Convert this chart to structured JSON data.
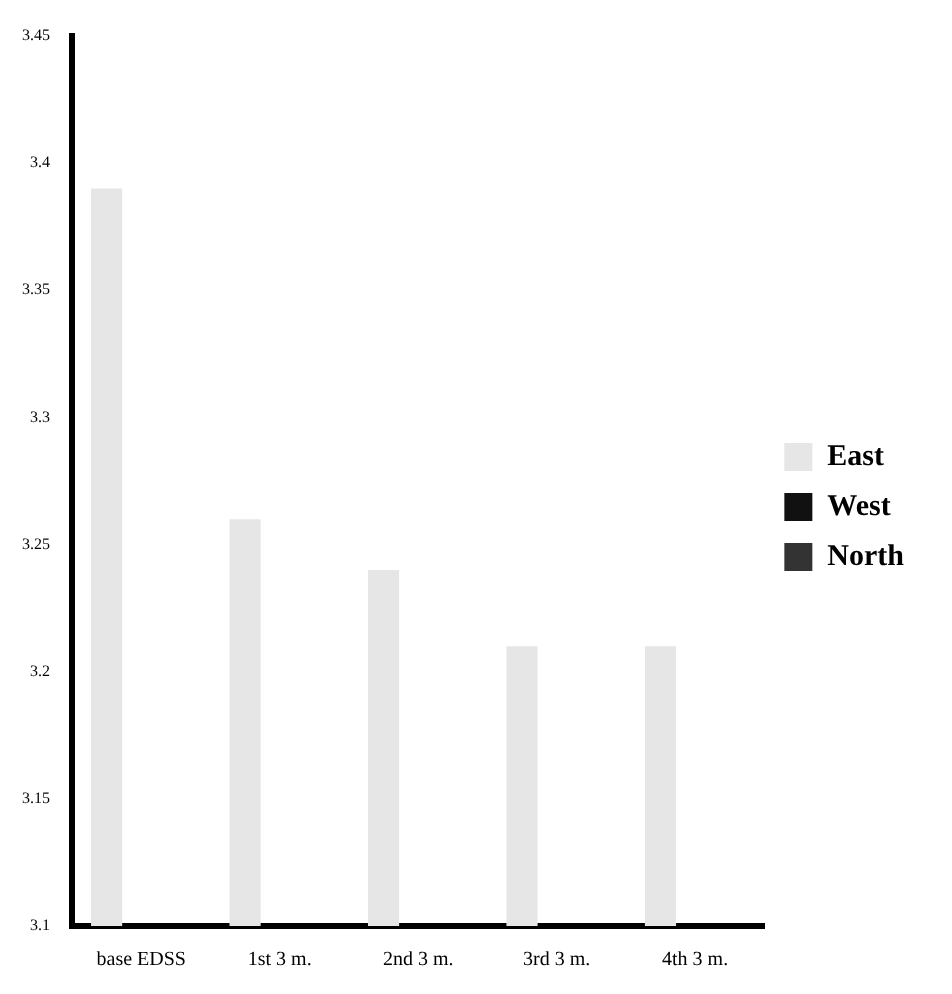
{
  "chart_data": {
    "type": "bar",
    "categories": [
      "base EDSS",
      "1st 3 m.",
      "2nd 3 m.",
      "3rd 3 m.",
      "4th 3 m."
    ],
    "series": [
      {
        "name": "East",
        "color": "#e6e6e6",
        "values": [
          3.39,
          3.26,
          3.24,
          3.21,
          3.21
        ]
      },
      {
        "name": "West",
        "color": "#111111",
        "values": [
          null,
          null,
          null,
          null,
          null
        ]
      },
      {
        "name": "North",
        "color": "#333333",
        "values": [
          null,
          null,
          null,
          null,
          null
        ]
      }
    ],
    "ylim": [
      3.1,
      3.45
    ],
    "yticks": [
      3.1,
      3.15,
      3.2,
      3.25,
      3.3,
      3.35,
      3.4,
      3.45
    ],
    "grid": false,
    "legend": "right"
  }
}
